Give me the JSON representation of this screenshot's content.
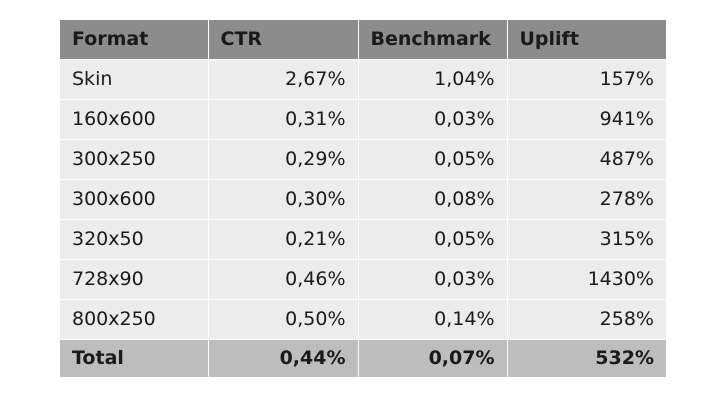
{
  "table": {
    "headers": [
      "Format",
      "CTR",
      "Benchmark",
      "Uplift"
    ],
    "rows": [
      {
        "format": "Skin",
        "ctr": "2,67%",
        "benchmark": "1,04%",
        "uplift": "157%"
      },
      {
        "format": "160x600",
        "ctr": "0,31%",
        "benchmark": "0,03%",
        "uplift": "941%"
      },
      {
        "format": "300x250",
        "ctr": "0,29%",
        "benchmark": "0,05%",
        "uplift": "487%"
      },
      {
        "format": "300x600",
        "ctr": "0,30%",
        "benchmark": "0,08%",
        "uplift": "278%"
      },
      {
        "format": "320x50",
        "ctr": "0,21%",
        "benchmark": "0,05%",
        "uplift": "315%"
      },
      {
        "format": "728x90",
        "ctr": "0,46%",
        "benchmark": "0,03%",
        "uplift": "1430%"
      },
      {
        "format": "800x250",
        "ctr": "0,50%",
        "benchmark": "0,14%",
        "uplift": "258%"
      }
    ],
    "total": {
      "label": "Total",
      "ctr": "0,44%",
      "benchmark": "0,07%",
      "uplift": "532%"
    }
  },
  "colors": {
    "header_bg": "#8c8c8c",
    "row_bg": "#ececec",
    "total_bg": "#bdbdbd"
  }
}
